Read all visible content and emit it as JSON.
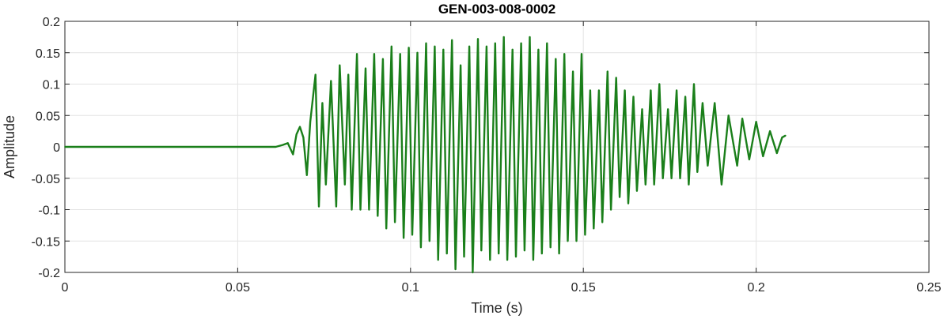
{
  "chart_data": {
    "type": "line",
    "title": "GEN-003-008-0002",
    "xlabel": "Time (s)",
    "ylabel": "Amplitude",
    "xlim": [
      0,
      0.25
    ],
    "ylim": [
      -0.2,
      0.2
    ],
    "grid": true,
    "x_ticks": [
      0,
      0.05,
      0.1,
      0.15,
      0.2,
      0.25
    ],
    "x_tick_labels": [
      "0",
      "0.05",
      "0.1",
      "0.15",
      "0.2",
      "0.25"
    ],
    "y_ticks": [
      0.2,
      0.15,
      0.1,
      0.05,
      0,
      -0.05,
      -0.1,
      -0.15,
      -0.2
    ],
    "y_tick_labels": [
      "0.2",
      "0.15",
      "0.1",
      "0.05",
      "0",
      "-0.05",
      "-0.1",
      "-0.15",
      "-0.2"
    ],
    "series": [
      {
        "color": "#1a7f1a",
        "x": [
          0,
          0.061,
          0.063,
          0.0645,
          0.066,
          0.067,
          0.068,
          0.069,
          0.07,
          0.071,
          0.0725,
          0.0735,
          0.0745,
          0.0755,
          0.077,
          0.0785,
          0.0795,
          0.081,
          0.082,
          0.083,
          0.0845,
          0.0855,
          0.087,
          0.088,
          0.0895,
          0.0905,
          0.092,
          0.093,
          0.0945,
          0.0955,
          0.097,
          0.098,
          0.0995,
          0.1005,
          0.102,
          0.103,
          0.1045,
          0.1055,
          0.107,
          0.108,
          0.1095,
          0.1105,
          0.112,
          0.113,
          0.1145,
          0.1155,
          0.117,
          0.118,
          0.1195,
          0.1205,
          0.122,
          0.123,
          0.1245,
          0.1255,
          0.127,
          0.128,
          0.1295,
          0.1305,
          0.132,
          0.133,
          0.1345,
          0.1355,
          0.137,
          0.138,
          0.1395,
          0.1405,
          0.142,
          0.143,
          0.1445,
          0.1455,
          0.147,
          0.148,
          0.1495,
          0.1505,
          0.152,
          0.153,
          0.1545,
          0.1555,
          0.157,
          0.158,
          0.1595,
          0.1605,
          0.162,
          0.163,
          0.1645,
          0.1655,
          0.167,
          0.168,
          0.1695,
          0.1705,
          0.172,
          0.173,
          0.1745,
          0.1755,
          0.177,
          0.178,
          0.1795,
          0.1805,
          0.182,
          0.183,
          0.1845,
          0.186,
          0.188,
          0.19,
          0.192,
          0.1945,
          0.196,
          0.198,
          0.2,
          0.202,
          0.204,
          0.206,
          0.2075,
          0.2085
        ],
        "y": [
          0,
          0.0,
          0.003,
          0.006,
          -0.012,
          0.02,
          0.032,
          0.015,
          -0.045,
          0.04,
          0.115,
          -0.095,
          0.07,
          -0.06,
          0.105,
          -0.095,
          0.13,
          -0.06,
          0.115,
          -0.1,
          0.148,
          -0.1,
          0.125,
          -0.1,
          0.148,
          -0.11,
          0.14,
          -0.13,
          0.16,
          -0.12,
          0.148,
          -0.145,
          0.158,
          -0.14,
          0.15,
          -0.16,
          0.165,
          -0.15,
          0.16,
          -0.18,
          0.155,
          -0.17,
          0.17,
          -0.195,
          0.13,
          -0.175,
          0.16,
          -0.2,
          0.172,
          -0.165,
          0.16,
          -0.18,
          0.165,
          -0.17,
          0.175,
          -0.18,
          0.155,
          -0.175,
          0.165,
          -0.165,
          0.175,
          -0.18,
          0.155,
          -0.17,
          0.165,
          -0.16,
          0.14,
          -0.17,
          0.148,
          -0.15,
          0.12,
          -0.15,
          0.148,
          -0.14,
          0.09,
          -0.13,
          0.09,
          -0.12,
          0.12,
          -0.1,
          0.11,
          -0.08,
          0.09,
          -0.09,
          0.08,
          -0.07,
          0.06,
          -0.06,
          0.09,
          -0.06,
          0.1,
          -0.05,
          0.06,
          -0.05,
          0.09,
          -0.05,
          0.08,
          -0.06,
          0.1,
          -0.04,
          0.07,
          -0.03,
          0.07,
          -0.06,
          0.05,
          -0.03,
          0.045,
          -0.02,
          0.04,
          -0.015,
          0.025,
          -0.01,
          0.015,
          0.018
        ]
      }
    ]
  }
}
